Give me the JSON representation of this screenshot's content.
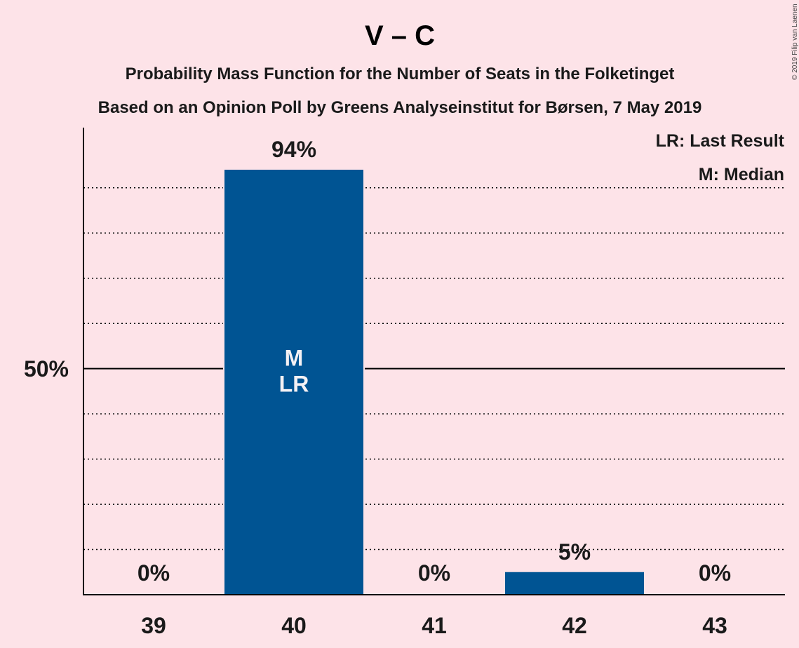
{
  "chart_data": {
    "type": "bar",
    "title": "V – C",
    "subtitle_1": "Probability Mass Function for the Number of Seats in the Folketinget",
    "subtitle_2": "Based on an Opinion Poll by Greens Analyseinstitut for Børsen, 7 May 2019",
    "categories": [
      "39",
      "40",
      "41",
      "42",
      "43"
    ],
    "values": [
      0,
      94,
      0,
      5,
      0
    ],
    "value_labels": [
      "0%",
      "94%",
      "0%",
      "5%",
      "0%"
    ],
    "bar_annotations": [
      "",
      "M\nLR",
      "",
      "",
      ""
    ],
    "ylim": [
      0,
      103
    ],
    "y_tick_label": "50%",
    "y_tick_value": 50,
    "grid_values": [
      10,
      20,
      30,
      40,
      60,
      70,
      80,
      90
    ],
    "grid": true,
    "legend": [
      "LR: Last Result",
      "M: Median"
    ],
    "legend_position": "top-right",
    "copyright": "© 2019 Filip van Laenen",
    "colors": {
      "bar": "#005493",
      "background": "#fde3e8"
    }
  }
}
